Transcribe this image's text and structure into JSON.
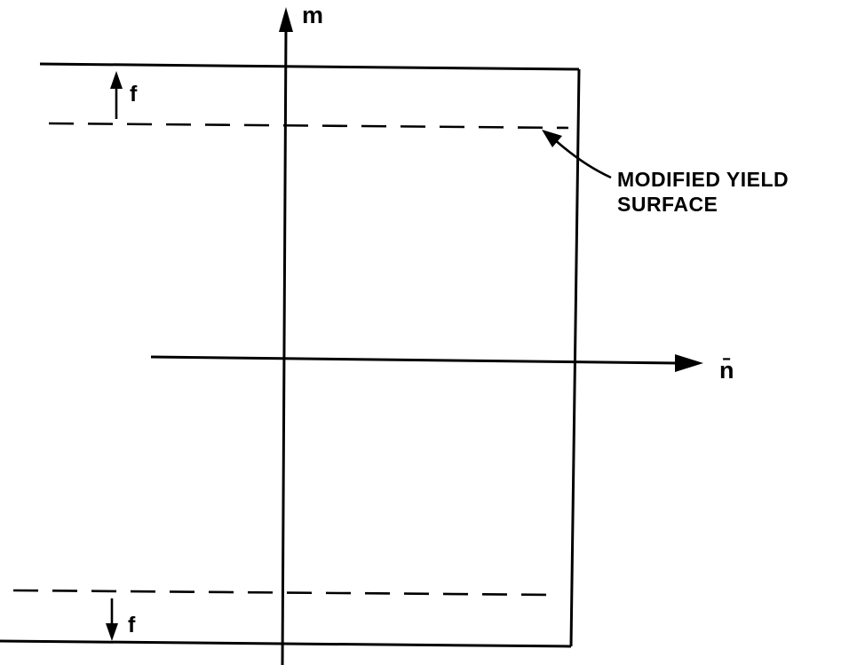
{
  "diagram": {
    "axes": {
      "vertical_label": "m",
      "horizontal_label": "n̄"
    },
    "offsets": {
      "top_label": "f",
      "bottom_label": "f"
    },
    "annotation": {
      "line1": "MODIFIED YIELD",
      "line2": "SURFACE"
    }
  }
}
